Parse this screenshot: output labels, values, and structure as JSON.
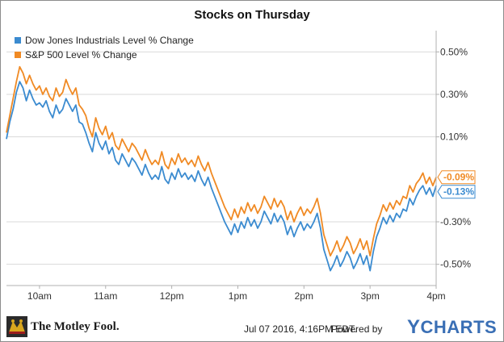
{
  "chart_data": {
    "type": "line",
    "title": "Stocks on Thursday",
    "x_ticks": [
      "10am",
      "11am",
      "12pm",
      "1pm",
      "2pm",
      "3pm",
      "4pm"
    ],
    "y_ticks": [
      "0.50%",
      "0.30%",
      "0.10%",
      "-0.30%",
      "-0.50%"
    ],
    "y_tick_values": [
      0.5,
      0.3,
      0.1,
      -0.3,
      -0.5
    ],
    "ylim": [
      -0.6,
      0.6
    ],
    "x_range_hours": [
      9.5,
      16.0
    ],
    "legend_position": "top-left",
    "grid": "horizontal",
    "series": [
      {
        "name": "Dow Jones Industrials Level % Change",
        "color": "#3b8bd0",
        "end_label": "-0.13%",
        "points": [
          [
            9.5,
            0.09
          ],
          [
            9.55,
            0.17
          ],
          [
            9.6,
            0.23
          ],
          [
            9.65,
            0.31
          ],
          [
            9.7,
            0.36
          ],
          [
            9.75,
            0.33
          ],
          [
            9.8,
            0.27
          ],
          [
            9.85,
            0.32
          ],
          [
            9.9,
            0.28
          ],
          [
            9.95,
            0.25
          ],
          [
            10.0,
            0.26
          ],
          [
            10.05,
            0.24
          ],
          [
            10.1,
            0.27
          ],
          [
            10.15,
            0.22
          ],
          [
            10.2,
            0.19
          ],
          [
            10.25,
            0.25
          ],
          [
            10.3,
            0.21
          ],
          [
            10.35,
            0.23
          ],
          [
            10.4,
            0.28
          ],
          [
            10.45,
            0.25
          ],
          [
            10.5,
            0.22
          ],
          [
            10.55,
            0.25
          ],
          [
            10.6,
            0.17
          ],
          [
            10.65,
            0.16
          ],
          [
            10.7,
            0.12
          ],
          [
            10.75,
            0.07
          ],
          [
            10.8,
            0.03
          ],
          [
            10.85,
            0.12
          ],
          [
            10.9,
            0.07
          ],
          [
            10.95,
            0.04
          ],
          [
            11.0,
            0.08
          ],
          [
            11.05,
            0.02
          ],
          [
            11.1,
            0.05
          ],
          [
            11.15,
            -0.01
          ],
          [
            11.2,
            -0.03
          ],
          [
            11.25,
            0.02
          ],
          [
            11.3,
            -0.01
          ],
          [
            11.35,
            -0.04
          ],
          [
            11.4,
            0.0
          ],
          [
            11.45,
            -0.02
          ],
          [
            11.5,
            -0.05
          ],
          [
            11.55,
            -0.08
          ],
          [
            11.6,
            -0.03
          ],
          [
            11.65,
            -0.07
          ],
          [
            11.7,
            -0.1
          ],
          [
            11.75,
            -0.08
          ],
          [
            11.8,
            -0.1
          ],
          [
            11.85,
            -0.04
          ],
          [
            11.9,
            -0.1
          ],
          [
            11.95,
            -0.12
          ],
          [
            12.0,
            -0.07
          ],
          [
            12.05,
            -0.1
          ],
          [
            12.1,
            -0.05
          ],
          [
            12.15,
            -0.09
          ],
          [
            12.2,
            -0.07
          ],
          [
            12.25,
            -0.1
          ],
          [
            12.3,
            -0.08
          ],
          [
            12.35,
            -0.11
          ],
          [
            12.4,
            -0.06
          ],
          [
            12.45,
            -0.1
          ],
          [
            12.5,
            -0.13
          ],
          [
            12.55,
            -0.09
          ],
          [
            12.6,
            -0.14
          ],
          [
            12.65,
            -0.18
          ],
          [
            12.7,
            -0.22
          ],
          [
            12.75,
            -0.26
          ],
          [
            12.8,
            -0.3
          ],
          [
            12.85,
            -0.33
          ],
          [
            12.9,
            -0.36
          ],
          [
            12.95,
            -0.31
          ],
          [
            13.0,
            -0.35
          ],
          [
            13.05,
            -0.3
          ],
          [
            13.1,
            -0.33
          ],
          [
            13.15,
            -0.28
          ],
          [
            13.2,
            -0.32
          ],
          [
            13.25,
            -0.29
          ],
          [
            13.3,
            -0.33
          ],
          [
            13.35,
            -0.3
          ],
          [
            13.4,
            -0.25
          ],
          [
            13.45,
            -0.28
          ],
          [
            13.5,
            -0.31
          ],
          [
            13.55,
            -0.26
          ],
          [
            13.6,
            -0.3
          ],
          [
            13.65,
            -0.27
          ],
          [
            13.7,
            -0.3
          ],
          [
            13.75,
            -0.36
          ],
          [
            13.8,
            -0.32
          ],
          [
            13.85,
            -0.37
          ],
          [
            13.9,
            -0.33
          ],
          [
            13.95,
            -0.3
          ],
          [
            14.0,
            -0.34
          ],
          [
            14.05,
            -0.31
          ],
          [
            14.1,
            -0.33
          ],
          [
            14.15,
            -0.3
          ],
          [
            14.2,
            -0.26
          ],
          [
            14.25,
            -0.33
          ],
          [
            14.3,
            -0.43
          ],
          [
            14.35,
            -0.48
          ],
          [
            14.4,
            -0.53
          ],
          [
            14.45,
            -0.5
          ],
          [
            14.5,
            -0.46
          ],
          [
            14.55,
            -0.51
          ],
          [
            14.6,
            -0.48
          ],
          [
            14.65,
            -0.44
          ],
          [
            14.7,
            -0.47
          ],
          [
            14.75,
            -0.52
          ],
          [
            14.8,
            -0.49
          ],
          [
            14.85,
            -0.45
          ],
          [
            14.9,
            -0.5
          ],
          [
            14.95,
            -0.46
          ],
          [
            15.0,
            -0.53
          ],
          [
            15.05,
            -0.44
          ],
          [
            15.1,
            -0.37
          ],
          [
            15.15,
            -0.33
          ],
          [
            15.2,
            -0.28
          ],
          [
            15.25,
            -0.31
          ],
          [
            15.3,
            -0.27
          ],
          [
            15.35,
            -0.3
          ],
          [
            15.4,
            -0.26
          ],
          [
            15.45,
            -0.28
          ],
          [
            15.5,
            -0.24
          ],
          [
            15.55,
            -0.25
          ],
          [
            15.6,
            -0.19
          ],
          [
            15.65,
            -0.22
          ],
          [
            15.7,
            -0.18
          ],
          [
            15.75,
            -0.15
          ],
          [
            15.8,
            -0.13
          ],
          [
            15.85,
            -0.17
          ],
          [
            15.9,
            -0.14
          ],
          [
            15.95,
            -0.18
          ],
          [
            16.0,
            -0.13
          ]
        ]
      },
      {
        "name": "S&P 500 Level % Change",
        "color": "#f08a24",
        "end_label": "-0.09%",
        "points": [
          [
            9.5,
            0.12
          ],
          [
            9.55,
            0.2
          ],
          [
            9.6,
            0.28
          ],
          [
            9.65,
            0.36
          ],
          [
            9.7,
            0.43
          ],
          [
            9.75,
            0.4
          ],
          [
            9.8,
            0.35
          ],
          [
            9.85,
            0.39
          ],
          [
            9.9,
            0.35
          ],
          [
            9.95,
            0.32
          ],
          [
            10.0,
            0.34
          ],
          [
            10.05,
            0.3
          ],
          [
            10.1,
            0.33
          ],
          [
            10.15,
            0.29
          ],
          [
            10.2,
            0.27
          ],
          [
            10.25,
            0.33
          ],
          [
            10.3,
            0.29
          ],
          [
            10.35,
            0.31
          ],
          [
            10.4,
            0.37
          ],
          [
            10.45,
            0.33
          ],
          [
            10.5,
            0.3
          ],
          [
            10.55,
            0.33
          ],
          [
            10.6,
            0.25
          ],
          [
            10.65,
            0.23
          ],
          [
            10.7,
            0.2
          ],
          [
            10.75,
            0.14
          ],
          [
            10.8,
            0.1
          ],
          [
            10.85,
            0.19
          ],
          [
            10.9,
            0.14
          ],
          [
            10.95,
            0.11
          ],
          [
            11.0,
            0.15
          ],
          [
            11.05,
            0.09
          ],
          [
            11.1,
            0.12
          ],
          [
            11.15,
            0.06
          ],
          [
            11.2,
            0.04
          ],
          [
            11.25,
            0.09
          ],
          [
            11.3,
            0.06
          ],
          [
            11.35,
            0.03
          ],
          [
            11.4,
            0.07
          ],
          [
            11.45,
            0.05
          ],
          [
            11.5,
            0.02
          ],
          [
            11.55,
            -0.01
          ],
          [
            11.6,
            0.04
          ],
          [
            11.65,
            0.0
          ],
          [
            11.7,
            -0.03
          ],
          [
            11.75,
            -0.01
          ],
          [
            11.8,
            -0.03
          ],
          [
            11.85,
            0.03
          ],
          [
            11.9,
            -0.03
          ],
          [
            11.95,
            -0.05
          ],
          [
            12.0,
            0.0
          ],
          [
            12.05,
            -0.03
          ],
          [
            12.1,
            0.02
          ],
          [
            12.15,
            -0.02
          ],
          [
            12.2,
            0.0
          ],
          [
            12.25,
            -0.03
          ],
          [
            12.3,
            -0.01
          ],
          [
            12.35,
            -0.04
          ],
          [
            12.4,
            0.01
          ],
          [
            12.45,
            -0.03
          ],
          [
            12.5,
            -0.06
          ],
          [
            12.55,
            -0.02
          ],
          [
            12.6,
            -0.07
          ],
          [
            12.65,
            -0.11
          ],
          [
            12.7,
            -0.15
          ],
          [
            12.75,
            -0.19
          ],
          [
            12.8,
            -0.23
          ],
          [
            12.85,
            -0.26
          ],
          [
            12.9,
            -0.29
          ],
          [
            12.95,
            -0.24
          ],
          [
            13.0,
            -0.28
          ],
          [
            13.05,
            -0.23
          ],
          [
            13.1,
            -0.26
          ],
          [
            13.15,
            -0.21
          ],
          [
            13.2,
            -0.25
          ],
          [
            13.25,
            -0.22
          ],
          [
            13.3,
            -0.26
          ],
          [
            13.35,
            -0.23
          ],
          [
            13.4,
            -0.18
          ],
          [
            13.45,
            -0.21
          ],
          [
            13.5,
            -0.24
          ],
          [
            13.55,
            -0.19
          ],
          [
            13.6,
            -0.23
          ],
          [
            13.65,
            -0.2
          ],
          [
            13.7,
            -0.23
          ],
          [
            13.75,
            -0.29
          ],
          [
            13.8,
            -0.25
          ],
          [
            13.85,
            -0.3
          ],
          [
            13.9,
            -0.26
          ],
          [
            13.95,
            -0.23
          ],
          [
            14.0,
            -0.27
          ],
          [
            14.05,
            -0.24
          ],
          [
            14.1,
            -0.26
          ],
          [
            14.15,
            -0.23
          ],
          [
            14.2,
            -0.19
          ],
          [
            14.25,
            -0.26
          ],
          [
            14.3,
            -0.36
          ],
          [
            14.35,
            -0.41
          ],
          [
            14.4,
            -0.46
          ],
          [
            14.45,
            -0.43
          ],
          [
            14.5,
            -0.39
          ],
          [
            14.55,
            -0.44
          ],
          [
            14.6,
            -0.41
          ],
          [
            14.65,
            -0.37
          ],
          [
            14.7,
            -0.4
          ],
          [
            14.75,
            -0.45
          ],
          [
            14.8,
            -0.42
          ],
          [
            14.85,
            -0.38
          ],
          [
            14.9,
            -0.43
          ],
          [
            14.95,
            -0.39
          ],
          [
            15.0,
            -0.46
          ],
          [
            15.05,
            -0.38
          ],
          [
            15.1,
            -0.31
          ],
          [
            15.15,
            -0.27
          ],
          [
            15.2,
            -0.22
          ],
          [
            15.25,
            -0.25
          ],
          [
            15.3,
            -0.21
          ],
          [
            15.35,
            -0.24
          ],
          [
            15.4,
            -0.2
          ],
          [
            15.45,
            -0.22
          ],
          [
            15.5,
            -0.18
          ],
          [
            15.55,
            -0.19
          ],
          [
            15.6,
            -0.13
          ],
          [
            15.65,
            -0.16
          ],
          [
            15.7,
            -0.12
          ],
          [
            15.75,
            -0.1
          ],
          [
            15.8,
            -0.07
          ],
          [
            15.85,
            -0.12
          ],
          [
            15.9,
            -0.09
          ],
          [
            15.95,
            -0.13
          ],
          [
            16.0,
            -0.09
          ]
        ]
      }
    ]
  },
  "footer": {
    "brand": "The Motley Fool.",
    "timestamp": "Jul 07 2016, 4:16PM EDT.",
    "powered_by": "Powered by",
    "ycharts_y": "Y",
    "ycharts_rest": "CHARTS",
    "ycharts_color": "#3a6fb5"
  }
}
